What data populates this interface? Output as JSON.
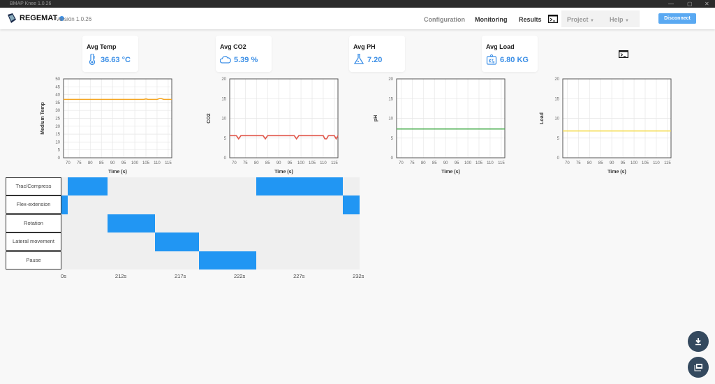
{
  "window": {
    "title": "BMAP Knee 1.0.26"
  },
  "header": {
    "brand": "REGEMAT",
    "version": "Versión 1.0.26",
    "nav": [
      {
        "label": "Configuration",
        "color": "#888"
      },
      {
        "label": "Monitoring",
        "color": "#333"
      },
      {
        "label": "Results",
        "color": "#333"
      }
    ],
    "menus": [
      {
        "label": "Project"
      },
      {
        "label": "Help"
      }
    ],
    "disconnect": "Disconnect"
  },
  "cards": [
    {
      "label": "Avg Temp",
      "value": "36.63 °C",
      "icon": "thermometer-icon"
    },
    {
      "label": "Avg CO2",
      "value": "5.39 %",
      "icon": "cloud-icon"
    },
    {
      "label": "Avg PH",
      "value": "7.20",
      "icon": "flask-icon"
    },
    {
      "label": "Avg Load",
      "value": "6.80 KG",
      "icon": "weight-kg-icon"
    }
  ],
  "colors": {
    "accent": "#3a8ee6",
    "gantt": "#2196f3",
    "fab": "#34495e"
  },
  "chart_data": [
    {
      "type": "line",
      "xlabel": "Time (s)",
      "ylabel": "Medium Temp",
      "xlim": [
        68,
        116.6
      ],
      "ylim": [
        0,
        50
      ],
      "yticks": [
        0,
        5,
        10,
        15,
        20,
        25,
        30,
        35,
        40,
        45,
        50
      ],
      "xticks": [
        70,
        75,
        80,
        85,
        90,
        95,
        100,
        105,
        110,
        115
      ],
      "grid": true,
      "color": "#f5a623",
      "x": [
        68,
        104,
        105,
        106,
        110,
        111,
        112,
        113,
        116.6
      ],
      "y": [
        37,
        37,
        37.3,
        37,
        37,
        37.5,
        37.5,
        37,
        37
      ]
    },
    {
      "type": "line",
      "xlabel": "Time (s)",
      "ylabel": "CO2",
      "xlim": [
        68,
        116.6
      ],
      "ylim": [
        0,
        20
      ],
      "yticks": [
        0,
        5,
        10,
        15,
        20
      ],
      "xticks": [
        70,
        75,
        80,
        85,
        90,
        95,
        100,
        105,
        110,
        115
      ],
      "grid": true,
      "color": "#e0564a",
      "x": [
        68,
        71,
        72,
        73,
        83,
        84,
        85,
        97,
        98,
        99,
        110,
        110.7,
        111.5,
        112.3,
        115,
        115.8,
        116.6
      ],
      "y": [
        5.6,
        5.6,
        4.8,
        5.6,
        5.6,
        4.8,
        5.6,
        5.6,
        4.8,
        5.6,
        5.6,
        4.8,
        4.8,
        5.6,
        5.6,
        4.8,
        5.6
      ]
    },
    {
      "type": "line",
      "xlabel": "Time (s)",
      "ylabel": "pH",
      "xlim": [
        68,
        116.6
      ],
      "ylim": [
        0,
        20
      ],
      "yticks": [
        0,
        5,
        10,
        15,
        20
      ],
      "xticks": [
        70,
        75,
        80,
        85,
        90,
        95,
        100,
        105,
        110,
        115
      ],
      "grid": true,
      "color": "#4caf50",
      "x": [
        68,
        116.6
      ],
      "y": [
        7.3,
        7.3
      ]
    },
    {
      "type": "line",
      "xlabel": "Time (s)",
      "ylabel": "Load",
      "xlim": [
        68,
        116.6
      ],
      "ylim": [
        0,
        20
      ],
      "yticks": [
        0,
        5,
        10,
        15,
        20
      ],
      "xticks": [
        70,
        75,
        80,
        85,
        90,
        95,
        100,
        105,
        110,
        115
      ],
      "grid": true,
      "color": "#f5dc50",
      "x": [
        68,
        116.6
      ],
      "y": [
        6.8,
        6.8
      ]
    }
  ],
  "gantt": {
    "rows": [
      "Trac/Compress",
      "Flex-extension",
      "Rotation",
      "Lateral movement",
      "Pause"
    ],
    "range": [
      207,
      232.1
    ],
    "ticks": [
      {
        "label": "0s",
        "t": 207
      },
      {
        "label": "212s",
        "t": 212
      },
      {
        "label": "217s",
        "t": 217
      },
      {
        "label": "222s",
        "t": 222
      },
      {
        "label": "227s",
        "t": 227
      },
      {
        "label": "232s",
        "t": 232
      }
    ],
    "segments": [
      {
        "row": 1,
        "start": 207,
        "end": 207.5
      },
      {
        "row": 0,
        "start": 207.5,
        "end": 210.9
      },
      {
        "row": 2,
        "start": 210.9,
        "end": 214.9
      },
      {
        "row": 3,
        "start": 214.9,
        "end": 218.6
      },
      {
        "row": 4,
        "start": 218.6,
        "end": 223.4
      },
      {
        "row": 0,
        "start": 223.4,
        "end": 230.7
      },
      {
        "row": 1,
        "start": 230.7,
        "end": 232.1
      }
    ]
  },
  "fabs": [
    {
      "icon": "download-icon"
    },
    {
      "icon": "image-export-icon"
    }
  ]
}
